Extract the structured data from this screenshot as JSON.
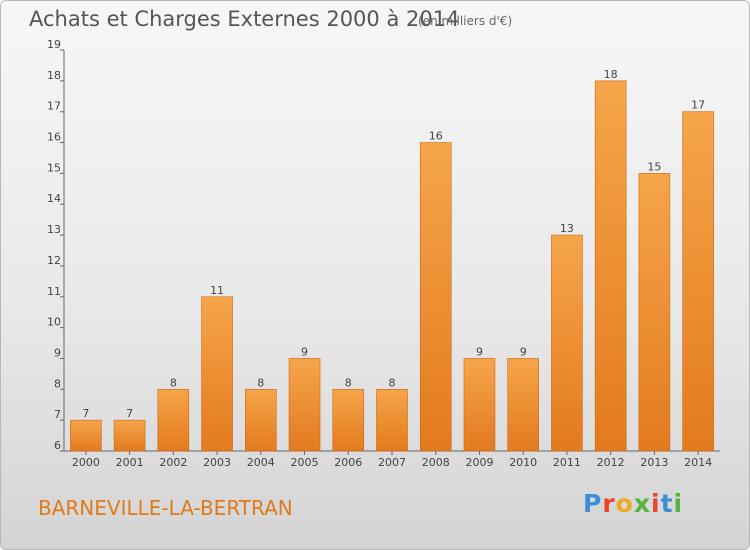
{
  "header": {
    "title": "Achats et Charges Externes 2000 à 2014",
    "subtitle": "(en milliers d'€)"
  },
  "footer": {
    "location": "BARNEVILLE-LA-BERTRAN",
    "logo": "Proxiti"
  },
  "colors": {
    "bar_light": "#f6a54a",
    "bar_dark": "#e37a1e",
    "location_text": "#e07b1c"
  },
  "chart_data": {
    "type": "bar",
    "title": "Achats et Charges Externes 2000 à 2014",
    "subtitle": "(en milliers d'€)",
    "categories": [
      "2000",
      "2001",
      "2002",
      "2003",
      "2004",
      "2005",
      "2006",
      "2007",
      "2008",
      "2009",
      "2010",
      "2011",
      "2012",
      "2013",
      "2014"
    ],
    "values": [
      7,
      7,
      8,
      11,
      8,
      9,
      8,
      8,
      16,
      9,
      9,
      13,
      18,
      15,
      17
    ],
    "ylim": [
      6,
      19
    ],
    "yticks": [
      6,
      7,
      8,
      9,
      10,
      11,
      12,
      13,
      14,
      15,
      16,
      17,
      18,
      19
    ],
    "grid": false,
    "data_labels": true
  }
}
